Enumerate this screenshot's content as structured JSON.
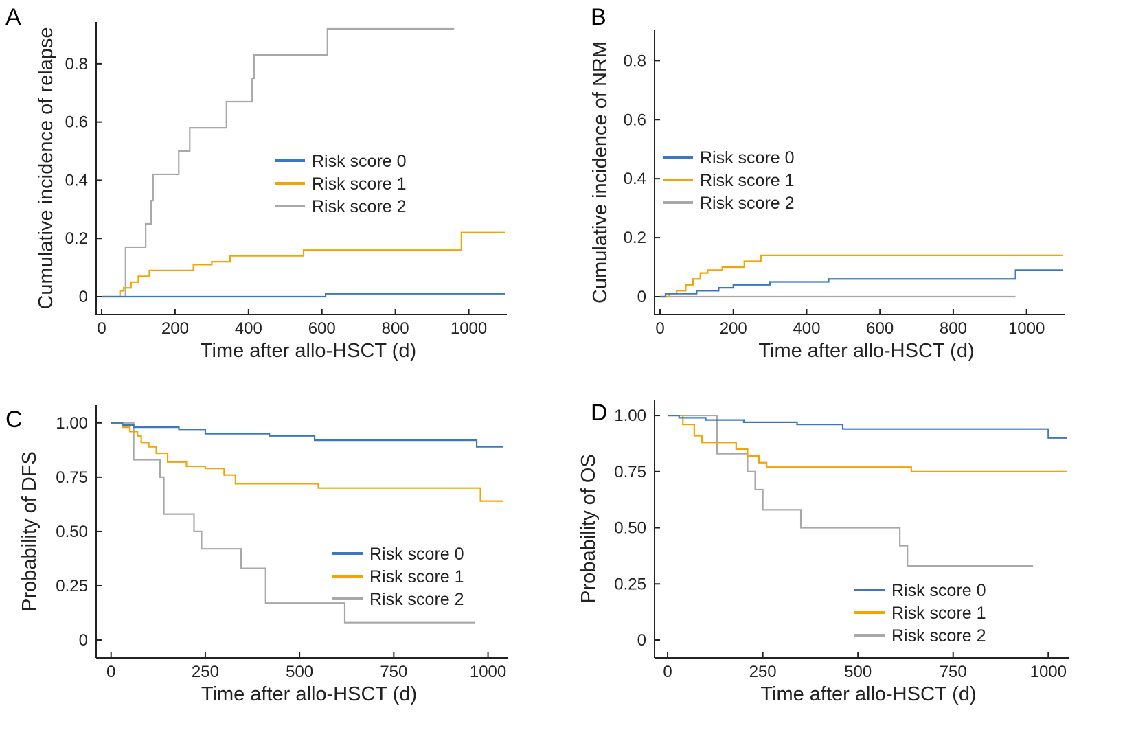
{
  "figure": {
    "panel_letters": [
      "A",
      "B",
      "C",
      "D"
    ]
  },
  "colors": {
    "risk0": "#3b78c2",
    "risk1": "#f5a300",
    "risk2": "#a8a8a8"
  },
  "chart_data": [
    {
      "panel": "A",
      "type": "line",
      "step": true,
      "xlabel": "Time after allo-HSCT (d)",
      "ylabel": "Cumulative incidence of relapse",
      "xlim": [
        0,
        1100
      ],
      "ylim": [
        0,
        0.92
      ],
      "xticks": [
        0,
        200,
        400,
        600,
        800,
        1000
      ],
      "xtick_labels": [
        "0",
        "200",
        "400",
        "600",
        "800",
        "1000"
      ],
      "yticks": [
        0,
        0.2,
        0.4,
        0.6,
        0.8
      ],
      "ytick_labels": [
        "0",
        "0.2",
        "0.4",
        "0.6",
        "0.8"
      ],
      "grid": false,
      "legend_position": "center-right",
      "series": [
        {
          "name": "Risk score 0",
          "x": [
            0,
            60,
            610,
            1100
          ],
          "y": [
            0,
            0,
            0.01,
            0.01
          ]
        },
        {
          "name": "Risk score 1",
          "x": [
            0,
            50,
            60,
            80,
            100,
            130,
            150,
            200,
            250,
            300,
            350,
            400,
            500,
            550,
            980,
            1100
          ],
          "y": [
            0,
            0.02,
            0.03,
            0.05,
            0.07,
            0.09,
            0.09,
            0.09,
            0.11,
            0.12,
            0.14,
            0.14,
            0.14,
            0.16,
            0.22,
            0.22
          ]
        },
        {
          "name": "Risk score 2",
          "x": [
            0,
            55,
            65,
            120,
            135,
            140,
            210,
            240,
            340,
            410,
            415,
            615,
            960
          ],
          "y": [
            0,
            0.0,
            0.17,
            0.25,
            0.33,
            0.42,
            0.5,
            0.58,
            0.67,
            0.75,
            0.83,
            0.92,
            0.92
          ]
        }
      ]
    },
    {
      "panel": "B",
      "type": "line",
      "step": true,
      "xlabel": "Time after allo-HSCT (d)",
      "ylabel": "Cumulative incidence of NRM",
      "xlim": [
        0,
        1100
      ],
      "ylim": [
        0,
        0.88
      ],
      "xticks": [
        0,
        200,
        400,
        600,
        800,
        1000
      ],
      "xtick_labels": [
        "0",
        "200",
        "400",
        "600",
        "800",
        "1000"
      ],
      "yticks": [
        0,
        0.2,
        0.4,
        0.6,
        0.8
      ],
      "ytick_labels": [
        "0",
        "0.2",
        "0.4",
        "0.6",
        "0.8"
      ],
      "grid": false,
      "legend_position": "center-left",
      "series": [
        {
          "name": "Risk score 0",
          "x": [
            0,
            15,
            40,
            100,
            160,
            200,
            260,
            300,
            350,
            460,
            970,
            1100
          ],
          "y": [
            0,
            0.01,
            0.01,
            0.02,
            0.03,
            0.04,
            0.04,
            0.05,
            0.05,
            0.06,
            0.09,
            0.09
          ]
        },
        {
          "name": "Risk score 1",
          "x": [
            0,
            25,
            45,
            70,
            90,
            110,
            130,
            170,
            230,
            275,
            1100
          ],
          "y": [
            0,
            0.01,
            0.02,
            0.04,
            0.06,
            0.08,
            0.09,
            0.1,
            0.12,
            0.14,
            0.14
          ]
        },
        {
          "name": "Risk score 2",
          "x": [
            0,
            970
          ],
          "y": [
            0,
            0
          ]
        }
      ]
    },
    {
      "panel": "C",
      "type": "line",
      "step": true,
      "xlabel": "Time after allo-HSCT (d)",
      "ylabel": "Probability of DFS",
      "xlim": [
        -25,
        1050
      ],
      "ylim": [
        0,
        1.05
      ],
      "xticks": [
        0,
        250,
        500,
        750,
        1000
      ],
      "xtick_labels": [
        "0",
        "250",
        "500",
        "750",
        "1000"
      ],
      "yticks": [
        0,
        0.25,
        0.5,
        0.75,
        1.0
      ],
      "ytick_labels": [
        "0",
        "0.25",
        "0.50",
        "0.75",
        "1.00"
      ],
      "grid": false,
      "legend_position": "bottom-right",
      "series": [
        {
          "name": "Risk score 0",
          "x": [
            0,
            30,
            60,
            180,
            250,
            420,
            540,
            970,
            1040
          ],
          "y": [
            1.0,
            0.99,
            0.98,
            0.97,
            0.95,
            0.94,
            0.92,
            0.89,
            0.89
          ]
        },
        {
          "name": "Risk score 1",
          "x": [
            0,
            30,
            50,
            70,
            80,
            100,
            120,
            150,
            200,
            250,
            300,
            330,
            550,
            970,
            980,
            1040
          ],
          "y": [
            1.0,
            0.98,
            0.96,
            0.94,
            0.91,
            0.89,
            0.86,
            0.82,
            0.8,
            0.79,
            0.76,
            0.72,
            0.7,
            0.7,
            0.64,
            0.64
          ]
        },
        {
          "name": "Risk score 2",
          "x": [
            0,
            60,
            130,
            140,
            220,
            240,
            345,
            410,
            620,
            965
          ],
          "y": [
            1.0,
            0.83,
            0.75,
            0.58,
            0.5,
            0.42,
            0.33,
            0.17,
            0.08,
            0.08
          ]
        }
      ]
    },
    {
      "panel": "D",
      "type": "line",
      "step": true,
      "xlabel": "Time after allo-HSCT (d)",
      "ylabel": "Probability of OS",
      "xlim": [
        -20,
        1050
      ],
      "ylim": [
        0,
        1.04
      ],
      "xticks": [
        0,
        250,
        500,
        750,
        1000
      ],
      "xtick_labels": [
        "0",
        "250",
        "500",
        "750",
        "1000"
      ],
      "yticks": [
        0,
        0.25,
        0.5,
        0.75,
        1.0
      ],
      "ytick_labels": [
        "0",
        "0.25",
        "0.50",
        "0.75",
        "1.00"
      ],
      "grid": false,
      "legend_position": "bottom-right",
      "series": [
        {
          "name": "Risk score 0",
          "x": [
            0,
            30,
            100,
            200,
            340,
            460,
            1000,
            1050
          ],
          "y": [
            1.0,
            0.99,
            0.98,
            0.97,
            0.96,
            0.94,
            0.9,
            0.9
          ]
        },
        {
          "name": "Risk score 1",
          "x": [
            0,
            40,
            70,
            90,
            180,
            210,
            240,
            260,
            640,
            1050
          ],
          "y": [
            1.0,
            0.96,
            0.91,
            0.88,
            0.85,
            0.82,
            0.79,
            0.77,
            0.75,
            0.75
          ]
        },
        {
          "name": "Risk score 2",
          "x": [
            0,
            130,
            210,
            230,
            250,
            350,
            610,
            630,
            960
          ],
          "y": [
            1.0,
            0.83,
            0.75,
            0.67,
            0.58,
            0.5,
            0.42,
            0.33,
            0.33
          ]
        }
      ]
    }
  ]
}
